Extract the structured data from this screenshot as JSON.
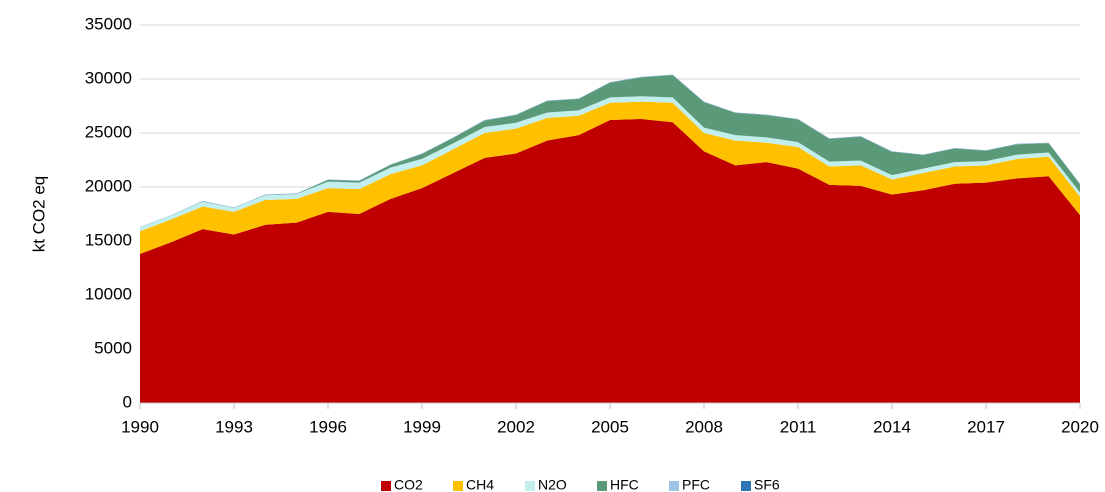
{
  "chart_data": {
    "type": "area",
    "stacked": true,
    "y_label": "kt CO2 eq",
    "x": [
      1990,
      1991,
      1992,
      1993,
      1994,
      1995,
      1996,
      1997,
      1998,
      1999,
      2000,
      2001,
      2002,
      2003,
      2004,
      2005,
      2006,
      2007,
      2008,
      2009,
      2010,
      2011,
      2012,
      2013,
      2014,
      2015,
      2016,
      2017,
      2018,
      2019,
      2020
    ],
    "xlim": [
      1990,
      2020
    ],
    "xticks": [
      1990,
      1993,
      1996,
      1999,
      2002,
      2005,
      2008,
      2011,
      2014,
      2017,
      2020
    ],
    "ylim": [
      0,
      35000
    ],
    "yticks": [
      0,
      5000,
      10000,
      15000,
      20000,
      25000,
      30000,
      35000
    ],
    "grid": true,
    "legend": "bottom",
    "series": [
      {
        "name": "CO2",
        "color": "#c00000",
        "values": [
          13800,
          14900,
          16100,
          15600,
          16500,
          16700,
          17700,
          17500,
          18900,
          19900,
          21300,
          22700,
          23100,
          24300,
          24800,
          26200,
          26300,
          26000,
          23300,
          22000,
          22300,
          21700,
          20200,
          20100,
          19300,
          19700,
          20300,
          20400,
          20800,
          21000,
          17400
        ]
      },
      {
        "name": "CH4",
        "color": "#ffc000",
        "values": [
          2100,
          2100,
          2100,
          2100,
          2300,
          2200,
          2200,
          2300,
          2300,
          2100,
          2200,
          2300,
          2300,
          2100,
          1800,
          1600,
          1600,
          1800,
          1700,
          2300,
          1800,
          2000,
          1700,
          1900,
          1400,
          1600,
          1600,
          1600,
          1800,
          1800,
          1700
        ]
      },
      {
        "name": "N2O",
        "color": "#c2eeee",
        "values": [
          360,
          360,
          440,
          360,
          440,
          440,
          600,
          600,
          600,
          600,
          550,
          550,
          550,
          500,
          500,
          500,
          500,
          500,
          500,
          500,
          500,
          450,
          450,
          450,
          400,
          400,
          400,
          400,
          400,
          400,
          400
        ]
      },
      {
        "name": "HFC",
        "color": "#5b9a78",
        "values": [
          0,
          0,
          20,
          0,
          20,
          20,
          160,
          160,
          260,
          460,
          510,
          610,
          710,
          1060,
          1060,
          1360,
          1760,
          2060,
          2360,
          2060,
          2060,
          2110,
          2110,
          2210,
          2160,
          1260,
          1260,
          960,
          960,
          860,
          760
        ]
      },
      {
        "name": "PFC",
        "color": "#9dc3e6",
        "values": [
          20,
          20,
          20,
          20,
          20,
          20,
          20,
          20,
          20,
          20,
          20,
          20,
          20,
          20,
          20,
          20,
          20,
          20,
          20,
          20,
          20,
          20,
          20,
          20,
          20,
          20,
          20,
          20,
          20,
          20,
          20
        ]
      },
      {
        "name": "SF6",
        "color": "#2e75b6",
        "values": [
          20,
          20,
          20,
          20,
          20,
          20,
          20,
          20,
          20,
          20,
          20,
          20,
          20,
          20,
          20,
          20,
          20,
          20,
          20,
          20,
          20,
          20,
          20,
          20,
          20,
          20,
          20,
          20,
          20,
          20,
          20
        ]
      }
    ]
  }
}
